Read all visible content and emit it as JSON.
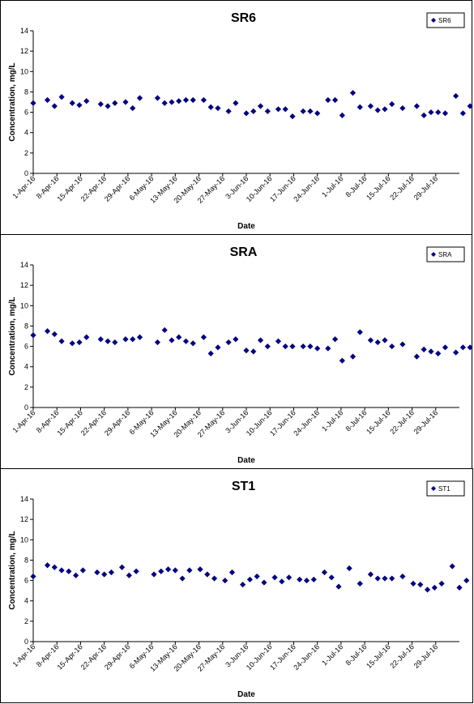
{
  "chart_data": [
    {
      "type": "scatter",
      "title": "SR6",
      "xlabel": "Date",
      "ylabel": "Concentration, mg/L",
      "ylim": [
        0,
        14
      ],
      "yticks": [
        "0",
        "2",
        "4",
        "6",
        "8",
        "10",
        "12",
        "14"
      ],
      "xlim": [
        "2016-04-01",
        "2016-07-30"
      ],
      "xticks": [
        "1-Apr-16",
        "8-Apr-16",
        "15-Apr-16",
        "22-Apr-16",
        "29-Apr-16",
        "6-May-16",
        "13-May-16",
        "20-May-16",
        "27-May-16",
        "3-Jun-16",
        "10-Jun-16",
        "17-Jun-16",
        "24-Jun-16",
        "1-Jul-16",
        "8-Jul-16",
        "15-Jul-16",
        "22-Jul-16",
        "29-Jul-16"
      ],
      "grid": false,
      "legend": "top-right",
      "color": "#000080",
      "series": [
        {
          "name": "SR6",
          "points": [
            [
              "2016-04-01",
              6.9
            ],
            [
              "2016-04-05",
              7.2
            ],
            [
              "2016-04-07",
              6.6
            ],
            [
              "2016-04-09",
              7.5
            ],
            [
              "2016-04-12",
              6.9
            ],
            [
              "2016-04-14",
              6.7
            ],
            [
              "2016-04-16",
              7.1
            ],
            [
              "2016-04-20",
              6.8
            ],
            [
              "2016-04-22",
              6.6
            ],
            [
              "2016-04-24",
              6.9
            ],
            [
              "2016-04-27",
              7.0
            ],
            [
              "2016-04-29",
              6.4
            ],
            [
              "2016-05-01",
              7.4
            ],
            [
              "2016-05-06",
              7.4
            ],
            [
              "2016-05-08",
              6.9
            ],
            [
              "2016-05-10",
              7.0
            ],
            [
              "2016-05-12",
              7.1
            ],
            [
              "2016-05-14",
              7.2
            ],
            [
              "2016-05-16",
              7.2
            ],
            [
              "2016-05-19",
              7.2
            ],
            [
              "2016-05-21",
              6.5
            ],
            [
              "2016-05-23",
              6.4
            ],
            [
              "2016-05-26",
              6.1
            ],
            [
              "2016-05-28",
              6.9
            ],
            [
              "2016-05-31",
              5.9
            ],
            [
              "2016-06-02",
              6.1
            ],
            [
              "2016-06-04",
              6.6
            ],
            [
              "2016-06-06",
              6.1
            ],
            [
              "2016-06-09",
              6.3
            ],
            [
              "2016-06-11",
              6.3
            ],
            [
              "2016-06-13",
              5.6
            ],
            [
              "2016-06-16",
              6.1
            ],
            [
              "2016-06-18",
              6.1
            ],
            [
              "2016-06-20",
              5.9
            ],
            [
              "2016-06-23",
              7.2
            ],
            [
              "2016-06-25",
              7.2
            ],
            [
              "2016-06-27",
              5.7
            ],
            [
              "2016-06-30",
              7.9
            ],
            [
              "2016-07-02",
              6.5
            ],
            [
              "2016-07-05",
              6.6
            ],
            [
              "2016-07-07",
              6.2
            ],
            [
              "2016-07-09",
              6.3
            ],
            [
              "2016-07-11",
              6.8
            ],
            [
              "2016-07-14",
              6.4
            ],
            [
              "2016-07-18",
              6.6
            ],
            [
              "2016-07-20",
              5.7
            ],
            [
              "2016-07-22",
              6.0
            ],
            [
              "2016-07-24",
              6.0
            ],
            [
              "2016-07-26",
              5.9
            ],
            [
              "2016-07-29",
              7.6
            ],
            [
              "2016-07-31",
              5.9
            ],
            [
              "2016-08-02",
              6.6
            ]
          ]
        }
      ]
    },
    {
      "type": "scatter",
      "title": "SRA",
      "xlabel": "Date",
      "ylabel": "Concentration, mg/L",
      "ylim": [
        0,
        14
      ],
      "yticks": [
        "0",
        "2",
        "4",
        "6",
        "8",
        "10",
        "12",
        "14"
      ],
      "xlim": [
        "2016-04-01",
        "2016-07-30"
      ],
      "xticks": [
        "1-Apr-16",
        "8-Apr-16",
        "15-Apr-16",
        "22-Apr-16",
        "29-Apr-16",
        "6-May-16",
        "13-May-16",
        "20-May-16",
        "27-May-16",
        "3-Jun-16",
        "10-Jun-16",
        "17-Jun-16",
        "24-Jun-16",
        "1-Jul-16",
        "8-Jul-16",
        "15-Jul-16",
        "22-Jul-16",
        "29-Jul-16"
      ],
      "grid": false,
      "legend": "top-right",
      "color": "#000080",
      "series": [
        {
          "name": "SRA",
          "points": [
            [
              "2016-04-01",
              7.1
            ],
            [
              "2016-04-05",
              7.5
            ],
            [
              "2016-04-07",
              7.2
            ],
            [
              "2016-04-09",
              6.5
            ],
            [
              "2016-04-12",
              6.3
            ],
            [
              "2016-04-14",
              6.4
            ],
            [
              "2016-04-16",
              6.9
            ],
            [
              "2016-04-20",
              6.7
            ],
            [
              "2016-04-22",
              6.5
            ],
            [
              "2016-04-24",
              6.4
            ],
            [
              "2016-04-27",
              6.7
            ],
            [
              "2016-04-29",
              6.7
            ],
            [
              "2016-05-01",
              6.9
            ],
            [
              "2016-05-06",
              6.4
            ],
            [
              "2016-05-08",
              7.6
            ],
            [
              "2016-05-10",
              6.6
            ],
            [
              "2016-05-12",
              6.9
            ],
            [
              "2016-05-14",
              6.5
            ],
            [
              "2016-05-16",
              6.3
            ],
            [
              "2016-05-19",
              6.9
            ],
            [
              "2016-05-21",
              5.3
            ],
            [
              "2016-05-23",
              5.9
            ],
            [
              "2016-05-26",
              6.4
            ],
            [
              "2016-05-28",
              6.7
            ],
            [
              "2016-05-31",
              5.6
            ],
            [
              "2016-06-02",
              5.5
            ],
            [
              "2016-06-04",
              6.6
            ],
            [
              "2016-06-06",
              6.0
            ],
            [
              "2016-06-09",
              6.5
            ],
            [
              "2016-06-11",
              6.0
            ],
            [
              "2016-06-13",
              6.0
            ],
            [
              "2016-06-16",
              6.0
            ],
            [
              "2016-06-18",
              6.0
            ],
            [
              "2016-06-20",
              5.8
            ],
            [
              "2016-06-23",
              5.8
            ],
            [
              "2016-06-25",
              6.7
            ],
            [
              "2016-06-27",
              4.6
            ],
            [
              "2016-06-30",
              5.0
            ],
            [
              "2016-07-02",
              7.4
            ],
            [
              "2016-07-05",
              6.6
            ],
            [
              "2016-07-07",
              6.4
            ],
            [
              "2016-07-09",
              6.6
            ],
            [
              "2016-07-11",
              6.0
            ],
            [
              "2016-07-14",
              6.2
            ],
            [
              "2016-07-18",
              5.0
            ],
            [
              "2016-07-20",
              5.7
            ],
            [
              "2016-07-22",
              5.5
            ],
            [
              "2016-07-24",
              5.3
            ],
            [
              "2016-07-26",
              5.9
            ],
            [
              "2016-07-29",
              5.4
            ],
            [
              "2016-07-31",
              5.9
            ],
            [
              "2016-08-02",
              5.9
            ]
          ]
        }
      ]
    },
    {
      "type": "scatter",
      "title": "ST1",
      "xlabel": "Date",
      "ylabel": "Concentration, mg/L",
      "ylim": [
        0,
        14
      ],
      "yticks": [
        "0",
        "2",
        "4",
        "6",
        "8",
        "10",
        "12",
        "14"
      ],
      "xlim": [
        "2016-04-01",
        "2016-07-30"
      ],
      "xticks": [
        "1-Apr-16",
        "8-Apr-16",
        "15-Apr-16",
        "22-Apr-16",
        "29-Apr-16",
        "6-May-16",
        "13-May-16",
        "20-May-16",
        "27-May-16",
        "3-Jun-16",
        "10-Jun-16",
        "17-Jun-16",
        "24-Jun-16",
        "1-Jul-16",
        "8-Jul-16",
        "15-Jul-16",
        "22-Jul-16",
        "29-Jul-16"
      ],
      "grid": false,
      "legend": "top-right",
      "color": "#000080",
      "series": [
        {
          "name": "ST1",
          "points": [
            [
              "2016-04-01",
              6.4
            ],
            [
              "2016-04-05",
              7.5
            ],
            [
              "2016-04-07",
              7.3
            ],
            [
              "2016-04-09",
              7.0
            ],
            [
              "2016-04-11",
              6.9
            ],
            [
              "2016-04-13",
              6.5
            ],
            [
              "2016-04-15",
              7.0
            ],
            [
              "2016-04-19",
              6.8
            ],
            [
              "2016-04-21",
              6.6
            ],
            [
              "2016-04-23",
              6.8
            ],
            [
              "2016-04-26",
              7.3
            ],
            [
              "2016-04-28",
              6.5
            ],
            [
              "2016-04-30",
              6.9
            ],
            [
              "2016-05-05",
              6.6
            ],
            [
              "2016-05-07",
              6.9
            ],
            [
              "2016-05-09",
              7.1
            ],
            [
              "2016-05-11",
              7.0
            ],
            [
              "2016-05-13",
              6.2
            ],
            [
              "2016-05-15",
              7.0
            ],
            [
              "2016-05-18",
              7.1
            ],
            [
              "2016-05-20",
              6.6
            ],
            [
              "2016-05-22",
              6.2
            ],
            [
              "2016-05-25",
              6.0
            ],
            [
              "2016-05-27",
              6.8
            ],
            [
              "2016-05-30",
              5.6
            ],
            [
              "2016-06-01",
              6.1
            ],
            [
              "2016-06-03",
              6.4
            ],
            [
              "2016-06-05",
              5.8
            ],
            [
              "2016-06-08",
              6.3
            ],
            [
              "2016-06-10",
              5.9
            ],
            [
              "2016-06-12",
              6.3
            ],
            [
              "2016-06-15",
              6.1
            ],
            [
              "2016-06-17",
              6.0
            ],
            [
              "2016-06-19",
              6.1
            ],
            [
              "2016-06-22",
              6.8
            ],
            [
              "2016-06-24",
              6.3
            ],
            [
              "2016-06-26",
              5.4
            ],
            [
              "2016-06-29",
              7.2
            ],
            [
              "2016-07-02",
              5.7
            ],
            [
              "2016-07-05",
              6.6
            ],
            [
              "2016-07-07",
              6.2
            ],
            [
              "2016-07-09",
              6.2
            ],
            [
              "2016-07-11",
              6.2
            ],
            [
              "2016-07-14",
              6.4
            ],
            [
              "2016-07-17",
              5.7
            ],
            [
              "2016-07-19",
              5.6
            ],
            [
              "2016-07-21",
              5.1
            ],
            [
              "2016-07-23",
              5.3
            ],
            [
              "2016-07-25",
              5.7
            ],
            [
              "2016-07-28",
              7.4
            ],
            [
              "2016-07-30",
              5.3
            ],
            [
              "2016-08-01",
              6.0
            ]
          ]
        }
      ]
    }
  ]
}
